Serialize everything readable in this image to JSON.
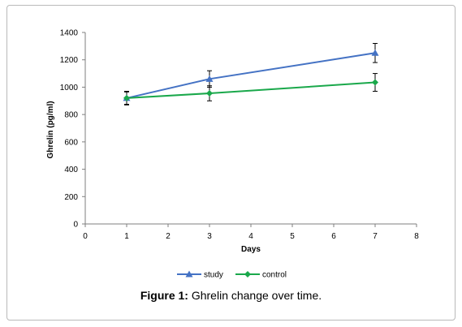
{
  "caption": {
    "label": "Figure 1:",
    "text": " Ghrelin change over time."
  },
  "chart_data": {
    "type": "line",
    "title": "",
    "xlabel": "Days",
    "ylabel": "Ghrelin (pg/ml)",
    "xlim": [
      0,
      8
    ],
    "ylim": [
      0,
      1400
    ],
    "xticks": [
      0,
      1,
      2,
      3,
      4,
      5,
      6,
      7,
      8
    ],
    "yticks": [
      0,
      200,
      400,
      600,
      800,
      1000,
      1200,
      1400
    ],
    "grid": false,
    "legend": "bottom",
    "series": [
      {
        "name": "study",
        "color": "#4472c4",
        "marker": "triangle",
        "x": [
          1,
          3,
          7
        ],
        "y": [
          920,
          1060,
          1250
        ],
        "error": [
          50,
          60,
          70
        ]
      },
      {
        "name": "control",
        "color": "#1aa84b",
        "marker": "diamond",
        "x": [
          1,
          3,
          7
        ],
        "y": [
          920,
          955,
          1035
        ],
        "error": [
          45,
          55,
          65
        ]
      }
    ]
  }
}
